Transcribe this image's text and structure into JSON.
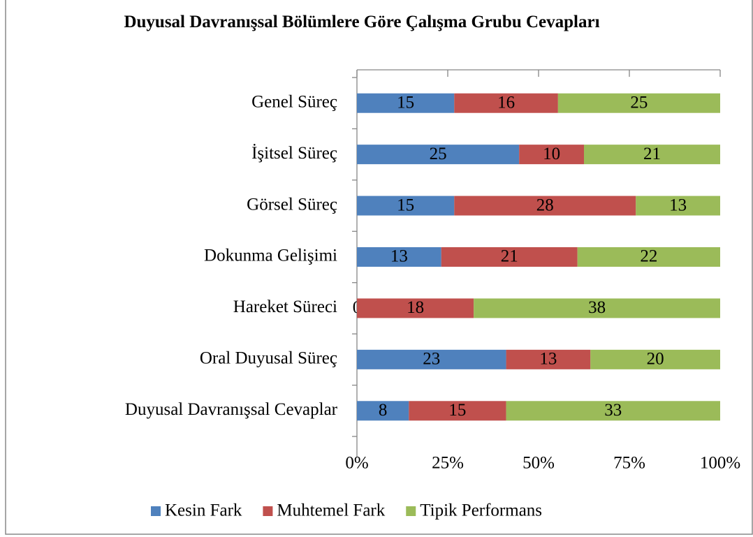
{
  "chart_data": {
    "type": "bar",
    "orientation": "horizontal",
    "stacking": "percent",
    "title": "Duyusal Davranışsal Bölümlere Göre Çalışma Grubu Cevapları",
    "categories": [
      "Genel Süreç",
      "İşitsel Süreç",
      "Görsel Süreç",
      "Dokunma Gelişimi",
      "Hareket Süreci",
      "Oral Duyusal Süreç",
      "Duyusal Davranışsal Cevaplar"
    ],
    "series": [
      {
        "name": "Kesin Fark",
        "color": "#4f81bd",
        "values": [
          15,
          25,
          15,
          13,
          0,
          23,
          8
        ]
      },
      {
        "name": "Muhtemel Fark",
        "color": "#c0504d",
        "values": [
          16,
          10,
          28,
          21,
          18,
          13,
          15
        ]
      },
      {
        "name": "Tipik Performans",
        "color": "#9bbb59",
        "values": [
          25,
          21,
          13,
          22,
          38,
          20,
          33
        ]
      }
    ],
    "xlim": [
      0,
      100
    ],
    "xticks": [
      {
        "value": 0,
        "label": "0%"
      },
      {
        "value": 25,
        "label": "25%"
      },
      {
        "value": 50,
        "label": "50%"
      },
      {
        "value": 75,
        "label": "75%"
      },
      {
        "value": 100,
        "label": "100%"
      }
    ],
    "legend": "bottom"
  }
}
